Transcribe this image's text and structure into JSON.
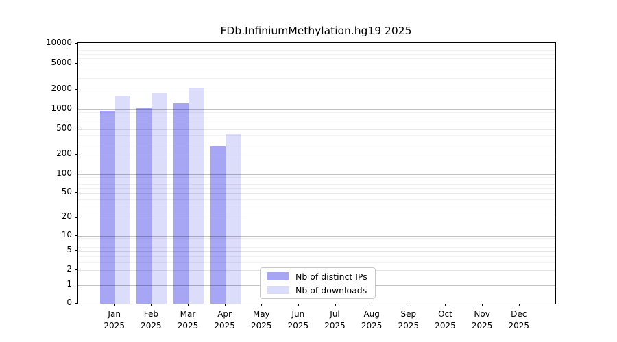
{
  "title": "FDb.InfiniumMethylation.hg19 2025",
  "chart_data": {
    "type": "bar",
    "title": "FDb.InfiniumMethylation.hg19 2025",
    "xlabel": "",
    "ylabel": "",
    "yscale": "symlog",
    "ylim": [
      0,
      10000
    ],
    "yticks": [
      0,
      1,
      2,
      5,
      10,
      20,
      50,
      100,
      200,
      500,
      1000,
      2000,
      5000,
      10000
    ],
    "grid": true,
    "legend_position": "bottom-center-inside",
    "categories": [
      "Jan",
      "Feb",
      "Mar",
      "Apr",
      "May",
      "Jun",
      "Jul",
      "Aug",
      "Sep",
      "Oct",
      "Nov",
      "Dec"
    ],
    "category_year": "2025",
    "series": [
      {
        "name": "Nb of distinct IPs",
        "color": "#a6a6f5",
        "values": [
          950,
          1050,
          1240,
          272,
          0,
          0,
          0,
          0,
          0,
          0,
          0,
          0
        ]
      },
      {
        "name": "Nb of downloads",
        "color": "#dcdcfb",
        "values": [
          1600,
          1800,
          2130,
          420,
          0,
          0,
          0,
          0,
          0,
          0,
          0,
          0
        ]
      }
    ]
  }
}
